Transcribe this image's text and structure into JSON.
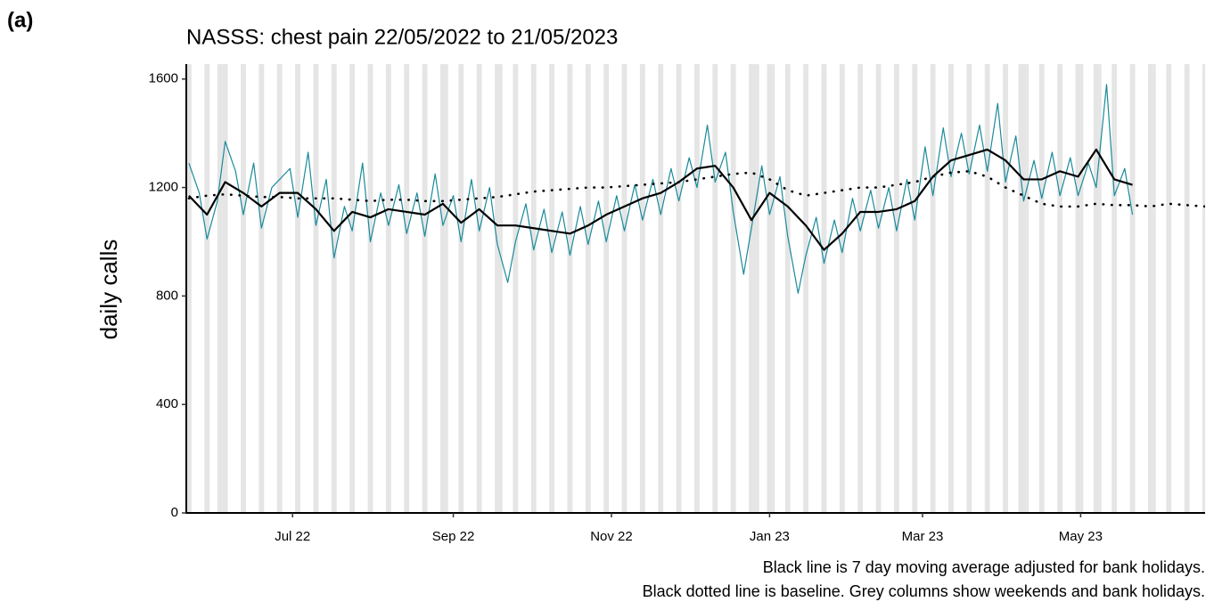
{
  "panel_label": "(a)",
  "chart_data": {
    "type": "line",
    "title": "NASSS: chest pain 22/05/2022 to 21/05/2023",
    "y_label": "daily calls",
    "notes": [
      "Black line is 7 day moving average adjusted for bank holidays.",
      "Black dotted line is baseline. Grey columns show weekends and bank holidays."
    ],
    "xlim": [
      "2022-05-21",
      "2023-06-18"
    ],
    "xticks": [
      {
        "value": "2022-07-01",
        "label": "Jul 22"
      },
      {
        "value": "2022-09-01",
        "label": "Sep 22"
      },
      {
        "value": "2022-11-01",
        "label": "Nov 22"
      },
      {
        "value": "2023-01-01",
        "label": "Jan 23"
      },
      {
        "value": "2023-03-01",
        "label": "Mar 23"
      },
      {
        "value": "2023-05-01",
        "label": "May 23"
      }
    ],
    "ylim": [
      0,
      1655
    ],
    "yticks": [
      0,
      400,
      800,
      1200,
      1600
    ],
    "grid": false,
    "shade_color": "#e5e5e5",
    "weekends": [
      "2022-05-21",
      "2022-05-28",
      "2022-06-04",
      "2022-06-11",
      "2022-06-18",
      "2022-06-25",
      "2022-07-02",
      "2022-07-09",
      "2022-07-16",
      "2022-07-23",
      "2022-07-30",
      "2022-08-06",
      "2022-08-13",
      "2022-08-20",
      "2022-08-27",
      "2022-09-03",
      "2022-09-10",
      "2022-09-17",
      "2022-09-24",
      "2022-10-01",
      "2022-10-08",
      "2022-10-15",
      "2022-10-22",
      "2022-10-29",
      "2022-11-05",
      "2022-11-12",
      "2022-11-19",
      "2022-11-26",
      "2022-12-03",
      "2022-12-10",
      "2022-12-17",
      "2022-12-24",
      "2022-12-31",
      "2023-01-07",
      "2023-01-14",
      "2023-01-21",
      "2023-01-28",
      "2023-02-04",
      "2023-02-11",
      "2023-02-18",
      "2023-02-25",
      "2023-03-04",
      "2023-03-11",
      "2023-03-18",
      "2023-03-25",
      "2023-04-01",
      "2023-04-08",
      "2023-04-15",
      "2023-04-22",
      "2023-04-29",
      "2023-05-06",
      "2023-05-13",
      "2023-05-20",
      "2023-05-27",
      "2023-06-03",
      "2023-06-10",
      "2023-06-17"
    ],
    "bank_holidays": [
      "2022-06-02",
      "2022-06-03",
      "2022-08-29",
      "2022-09-19",
      "2022-12-26",
      "2022-12-27",
      "2023-01-02",
      "2023-04-07",
      "2023-04-10",
      "2023-05-01",
      "2023-05-08",
      "2023-05-29"
    ],
    "x": [
      "2022-05-22",
      "2022-05-29",
      "2022-06-05",
      "2022-06-12",
      "2022-06-19",
      "2022-06-26",
      "2022-07-03",
      "2022-07-10",
      "2022-07-17",
      "2022-07-24",
      "2022-07-31",
      "2022-08-07",
      "2022-08-14",
      "2022-08-21",
      "2022-08-28",
      "2022-09-04",
      "2022-09-11",
      "2022-09-18",
      "2022-09-25",
      "2022-10-02",
      "2022-10-09",
      "2022-10-16",
      "2022-10-23",
      "2022-10-30",
      "2022-11-06",
      "2022-11-13",
      "2022-11-20",
      "2022-11-27",
      "2022-12-04",
      "2022-12-11",
      "2022-12-18",
      "2022-12-25",
      "2023-01-01",
      "2023-01-08",
      "2023-01-15",
      "2023-01-22",
      "2023-01-29",
      "2023-02-05",
      "2023-02-12",
      "2023-02-19",
      "2023-02-26",
      "2023-03-05",
      "2023-03-12",
      "2023-03-19",
      "2023-03-26",
      "2023-04-02",
      "2023-04-09",
      "2023-04-16",
      "2023-04-23",
      "2023-04-30",
      "2023-05-07",
      "2023-05-14",
      "2023-05-21",
      "2023-05-28",
      "2023-06-04",
      "2023-06-11",
      "2023-06-18"
    ],
    "series": [
      {
        "color": "#1b8a9b",
        "width": 1.2,
        "style": "solid",
        "x": [
          "2022-05-22",
          "2022-05-26",
          "2022-05-29",
          "2022-06-02",
          "2022-06-05",
          "2022-06-09",
          "2022-06-12",
          "2022-06-16",
          "2022-06-19",
          "2022-06-23",
          "2022-06-26",
          "2022-06-30",
          "2022-07-03",
          "2022-07-07",
          "2022-07-10",
          "2022-07-14",
          "2022-07-17",
          "2022-07-21",
          "2022-07-24",
          "2022-07-28",
          "2022-07-31",
          "2022-08-04",
          "2022-08-07",
          "2022-08-11",
          "2022-08-14",
          "2022-08-18",
          "2022-08-21",
          "2022-08-25",
          "2022-08-28",
          "2022-09-01",
          "2022-09-04",
          "2022-09-08",
          "2022-09-11",
          "2022-09-15",
          "2022-09-18",
          "2022-09-22",
          "2022-09-25",
          "2022-09-29",
          "2022-10-02",
          "2022-10-06",
          "2022-10-09",
          "2022-10-13",
          "2022-10-16",
          "2022-10-20",
          "2022-10-23",
          "2022-10-27",
          "2022-10-30",
          "2022-11-03",
          "2022-11-06",
          "2022-11-10",
          "2022-11-13",
          "2022-11-17",
          "2022-11-20",
          "2022-11-24",
          "2022-11-27",
          "2022-12-01",
          "2022-12-04",
          "2022-12-08",
          "2022-12-11",
          "2022-12-15",
          "2022-12-18",
          "2022-12-22",
          "2022-12-25",
          "2022-12-29",
          "2023-01-01",
          "2023-01-05",
          "2023-01-08",
          "2023-01-12",
          "2023-01-15",
          "2023-01-19",
          "2023-01-22",
          "2023-01-26",
          "2023-01-29",
          "2023-02-02",
          "2023-02-05",
          "2023-02-09",
          "2023-02-12",
          "2023-02-16",
          "2023-02-19",
          "2023-02-23",
          "2023-02-26",
          "2023-03-02",
          "2023-03-05",
          "2023-03-09",
          "2023-03-12",
          "2023-03-16",
          "2023-03-19",
          "2023-03-23",
          "2023-03-26",
          "2023-03-30",
          "2023-04-02",
          "2023-04-06",
          "2023-04-09",
          "2023-04-13",
          "2023-04-16",
          "2023-04-20",
          "2023-04-23",
          "2023-04-27",
          "2023-04-30",
          "2023-05-04",
          "2023-05-07",
          "2023-05-11",
          "2023-05-14",
          "2023-05-18",
          "2023-05-21"
        ],
        "values": [
          1290,
          1180,
          1010,
          1150,
          1370,
          1260,
          1100,
          1290,
          1050,
          1200,
          1230,
          1270,
          1090,
          1330,
          1060,
          1230,
          940,
          1130,
          1040,
          1290,
          1000,
          1180,
          1060,
          1210,
          1030,
          1180,
          1020,
          1250,
          1060,
          1170,
          1000,
          1230,
          1040,
          1200,
          990,
          850,
          1000,
          1140,
          970,
          1120,
          960,
          1110,
          950,
          1130,
          990,
          1150,
          1000,
          1170,
          1040,
          1210,
          1080,
          1230,
          1100,
          1270,
          1150,
          1310,
          1200,
          1430,
          1220,
          1330,
          1110,
          880,
          1050,
          1280,
          1100,
          1240,
          1020,
          810,
          950,
          1090,
          920,
          1080,
          960,
          1160,
          1040,
          1190,
          1050,
          1200,
          1040,
          1230,
          1080,
          1350,
          1170,
          1420,
          1240,
          1400,
          1250,
          1430,
          1260,
          1510,
          1220,
          1390,
          1150,
          1300,
          1160,
          1330,
          1170,
          1310,
          1170,
          1290,
          1200,
          1580,
          1170,
          1270,
          1100
        ]
      },
      {
        "color": "#000000",
        "width": 2.2,
        "style": "solid",
        "values": [
          1170,
          1100,
          1220,
          1180,
          1130,
          1180,
          1180,
          1120,
          1040,
          1110,
          1090,
          1120,
          1110,
          1100,
          1140,
          1070,
          1120,
          1060,
          1060,
          1050,
          1040,
          1030,
          1060,
          1100,
          1130,
          1160,
          1180,
          1220,
          1270,
          1280,
          1200,
          1080,
          1180,
          1130,
          1060,
          970,
          1030,
          1110,
          1110,
          1120,
          1150,
          1240,
          1300,
          1320,
          1340,
          1300,
          1230,
          1230,
          1260,
          1240,
          1340,
          1230,
          1210,
          null,
          null,
          null,
          null
        ]
      },
      {
        "color": "#000000",
        "width": 2.2,
        "style": "dotted",
        "values": [
          1160,
          1170,
          1175,
          1170,
          1165,
          1165,
          1160,
          1160,
          1160,
          1155,
          1150,
          1155,
          1155,
          1150,
          1150,
          1155,
          1160,
          1165,
          1175,
          1185,
          1190,
          1195,
          1200,
          1200,
          1205,
          1210,
          1215,
          1220,
          1230,
          1240,
          1250,
          1255,
          1230,
          1190,
          1170,
          1180,
          1190,
          1200,
          1200,
          1210,
          1220,
          1240,
          1255,
          1260,
          1240,
          1200,
          1170,
          1140,
          1130,
          1130,
          1140,
          1135,
          1135,
          1130,
          1140,
          1135,
          1130
        ]
      }
    ]
  }
}
